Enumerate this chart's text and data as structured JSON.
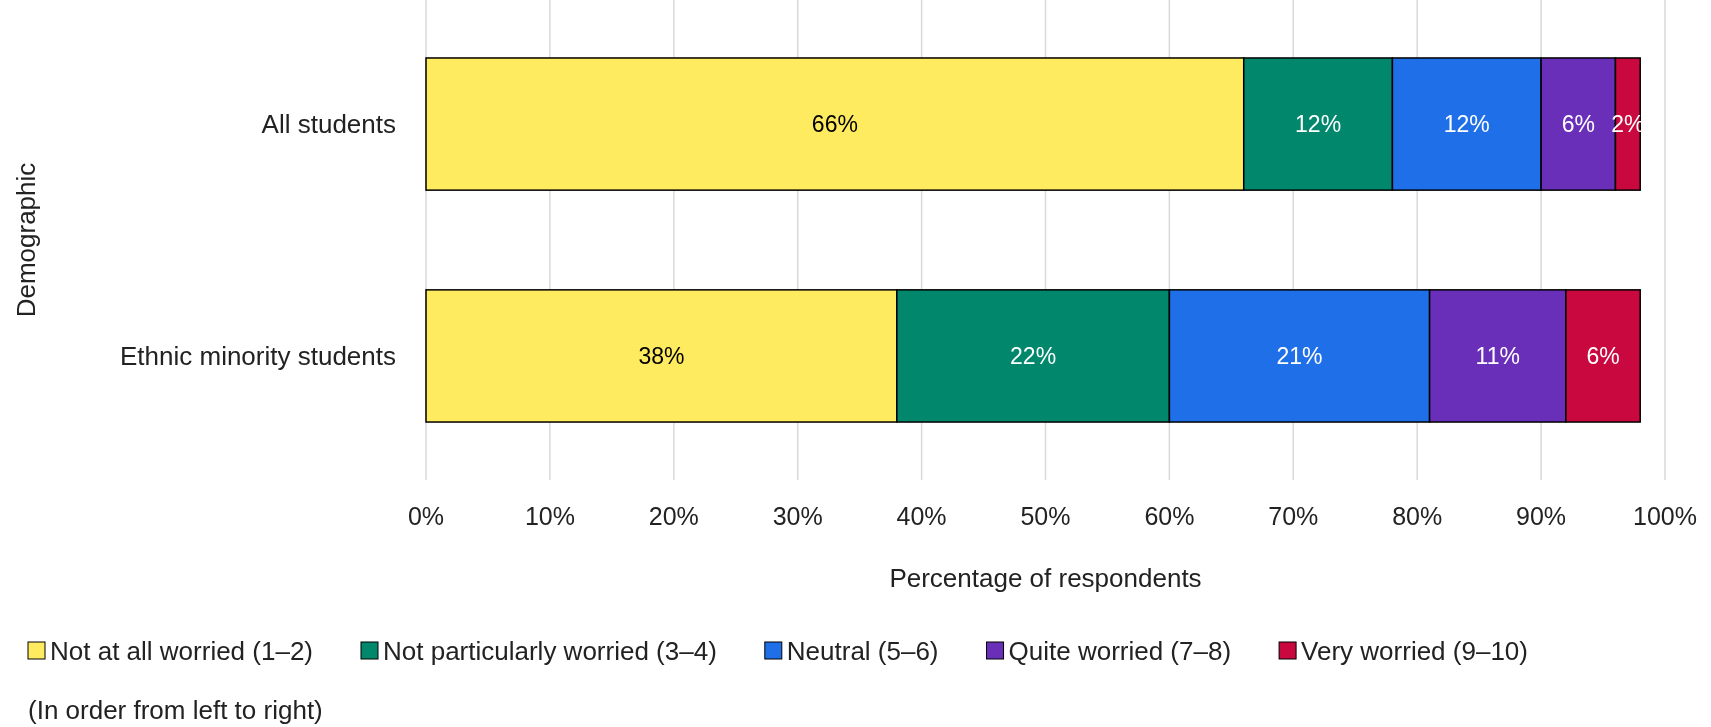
{
  "chart_data": {
    "type": "bar",
    "orientation": "horizontal",
    "stacked": true,
    "xlabel": "Percentage of respondents",
    "ylabel": "Demographic",
    "categories": [
      "All students",
      "Ethnic minority students"
    ],
    "series": [
      {
        "name": "Not at all worried (1–2)",
        "color": "#ffeb5f",
        "values": [
          66,
          38
        ],
        "value_labels": [
          "66%",
          "38%"
        ]
      },
      {
        "name": "Not particularly worried (3–4)",
        "color": "#00876c",
        "values": [
          12,
          22
        ],
        "value_labels": [
          "12%",
          "22%"
        ]
      },
      {
        "name": "Neutral (5–6)",
        "color": "#1e6fe8",
        "values": [
          12,
          21
        ],
        "value_labels": [
          "12%",
          "21%"
        ]
      },
      {
        "name": "Quite worried (7–8)",
        "color": "#6a2fb8",
        "values": [
          6,
          11
        ],
        "value_labels": [
          "6%",
          "11%"
        ]
      },
      {
        "name": "Very worried (9–10)",
        "color": "#c8083e",
        "values": [
          2,
          6
        ],
        "value_labels": [
          "2%",
          "6%"
        ]
      }
    ],
    "xlim": [
      0,
      100
    ],
    "xticks": [
      {
        "value": 0,
        "label": "0%"
      },
      {
        "value": 10,
        "label": "10%"
      },
      {
        "value": 20,
        "label": "20%"
      },
      {
        "value": 30,
        "label": "30%"
      },
      {
        "value": 40,
        "label": "40%"
      },
      {
        "value": 50,
        "label": "50%"
      },
      {
        "value": 60,
        "label": "60%"
      },
      {
        "value": 70,
        "label": "70%"
      },
      {
        "value": 80,
        "label": "80%"
      },
      {
        "value": 90,
        "label": "90%"
      },
      {
        "value": 100,
        "label": "100%"
      }
    ],
    "grid": "x",
    "legend": "bottom",
    "annotations": [
      "(In order from left to right)"
    ]
  }
}
